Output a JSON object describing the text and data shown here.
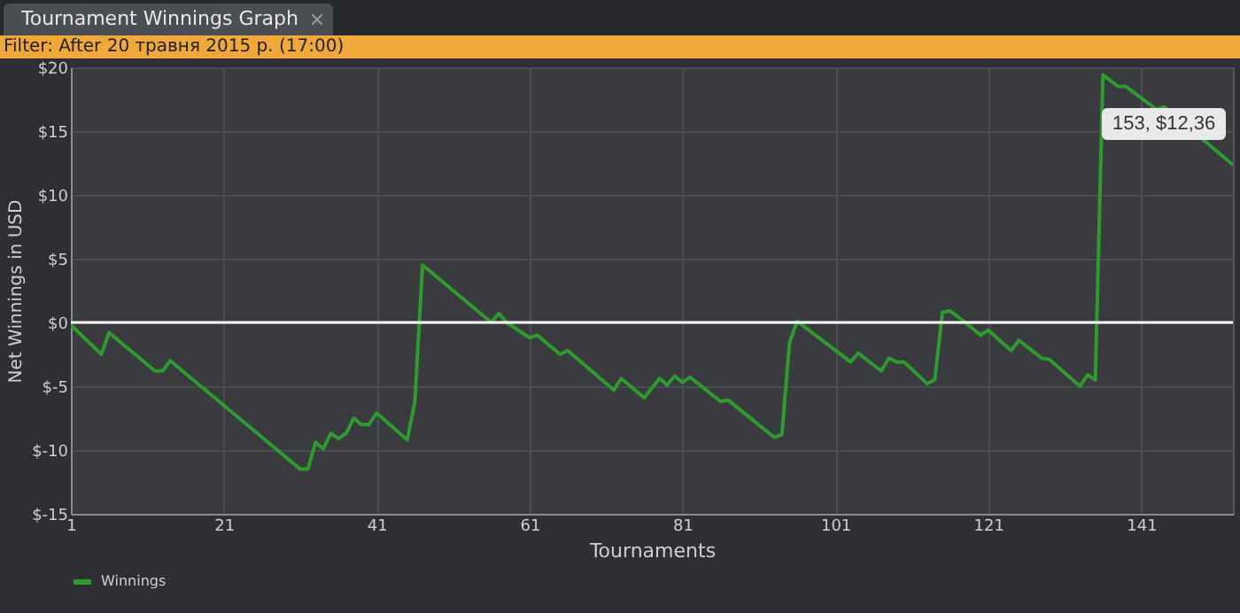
{
  "chart_data": {
    "type": "line",
    "title": "Tournament Winnings Graph",
    "subtitle": "Filter: After 20 травня 2015 р. (17:00)",
    "xlabel": "Tournaments",
    "ylabel": "Net Winnings in USD",
    "x": [
      1,
      5,
      6,
      12,
      13,
      14,
      31,
      32,
      33,
      34,
      35,
      36,
      37,
      38,
      39,
      40,
      41,
      45,
      46,
      47,
      56,
      57,
      58,
      61,
      62,
      65,
      66,
      72,
      73,
      76,
      78,
      79,
      80,
      81,
      82,
      86,
      87,
      93,
      94,
      95,
      96,
      103,
      104,
      107,
      108,
      109,
      110,
      113,
      114,
      115,
      116,
      118,
      120,
      121,
      124,
      125,
      128,
      129,
      133,
      134,
      135,
      136,
      138,
      139,
      143,
      144,
      153
    ],
    "series": [
      {
        "name": "Winnings",
        "color": "#2f9a2f",
        "values": [
          -0.2,
          -2.5,
          -0.8,
          -3.8,
          -3.8,
          -3.0,
          -11.5,
          -11.5,
          -9.4,
          -9.9,
          -8.7,
          -9.1,
          -8.7,
          -7.5,
          -8.0,
          -8.0,
          -7.1,
          -9.2,
          -6.2,
          4.5,
          0,
          0.7,
          0,
          -1.2,
          -1.0,
          -2.5,
          -2.2,
          -5.3,
          -4.4,
          -5.9,
          -4.4,
          -4.9,
          -4.2,
          -4.7,
          -4.3,
          -6.2,
          -6.1,
          -9.0,
          -8.8,
          -1.6,
          0.1,
          -3.1,
          -2.4,
          -3.8,
          -2.8,
          -3.1,
          -3.1,
          -4.8,
          -4.5,
          0.8,
          0.9,
          0,
          -1.0,
          -0.6,
          -2.2,
          -1.4,
          -2.8,
          -2.9,
          -5.0,
          -4.1,
          -4.5,
          19.4,
          18.5,
          18.5,
          16.7,
          16.9,
          12.36
        ]
      }
    ],
    "xlim": [
      1,
      153
    ],
    "xticks": [
      1,
      21,
      41,
      61,
      81,
      101,
      121,
      141
    ],
    "ylim": [
      -15,
      20
    ],
    "yticks": [
      {
        "value": -15,
        "label": "$-15"
      },
      {
        "value": -10,
        "label": "$-10"
      },
      {
        "value": -5,
        "label": "$-5"
      },
      {
        "value": 0,
        "label": "$0"
      },
      {
        "value": 5,
        "label": "$5"
      },
      {
        "value": 10,
        "label": "$10"
      },
      {
        "value": 15,
        "label": "$15"
      },
      {
        "value": 20,
        "label": "$20"
      }
    ],
    "ref_lines": [
      {
        "axis": "y",
        "value": 0,
        "color": "#ffffff"
      }
    ],
    "annotations": [
      {
        "text": "153, $12,36",
        "x": 153,
        "y": 12.36
      }
    ],
    "grid": true,
    "legend": "bottom",
    "line_style": "solid"
  }
}
